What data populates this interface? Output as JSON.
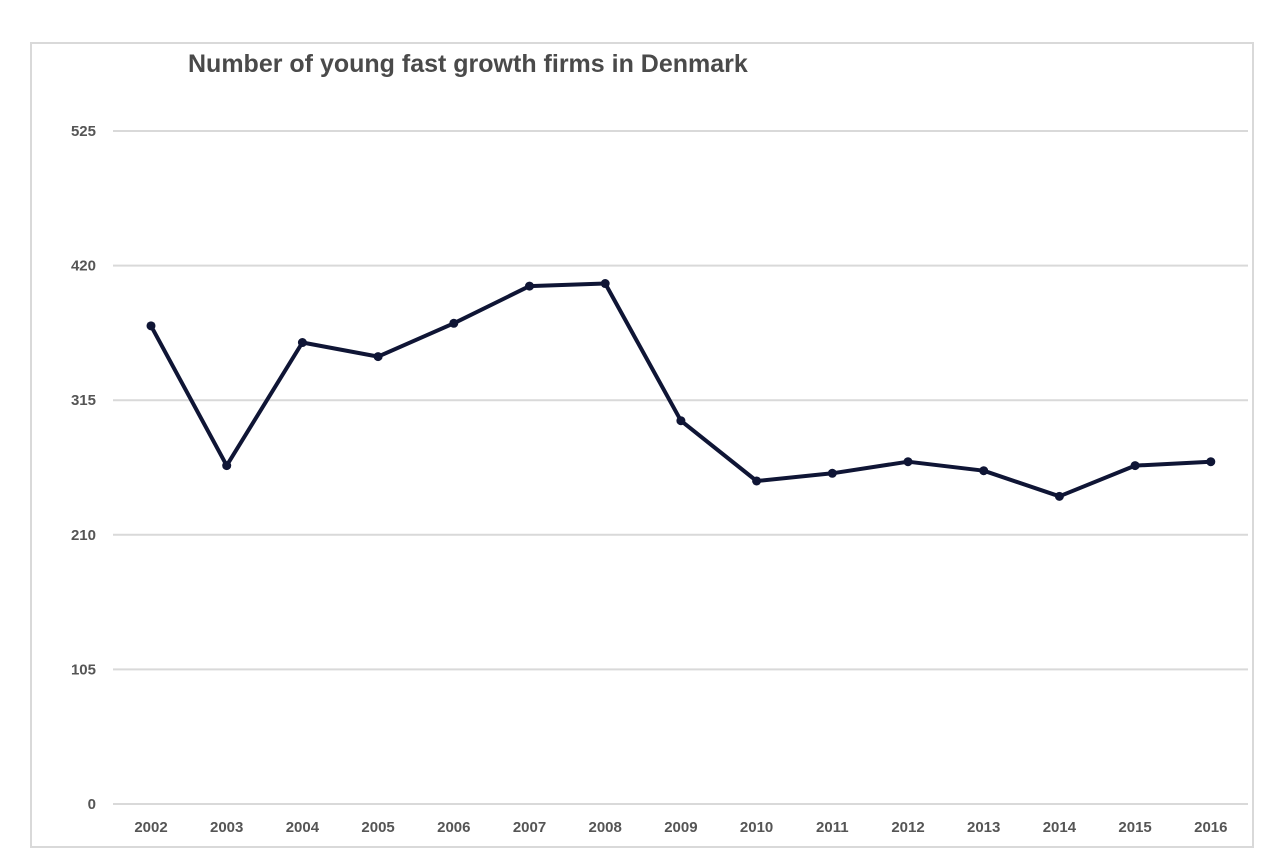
{
  "chart_data": {
    "type": "line",
    "title": "Number of young fast growth firms in Denmark",
    "xlabel": "",
    "ylabel": "",
    "categories": [
      "2002",
      "2003",
      "2004",
      "2005",
      "2006",
      "2007",
      "2008",
      "2009",
      "2010",
      "2011",
      "2012",
      "2013",
      "2014",
      "2015",
      "2016"
    ],
    "series": [
      {
        "values": [
          373,
          264,
          360,
          349,
          375,
          404,
          406,
          299,
          252,
          258,
          267,
          260,
          240,
          264,
          267
        ]
      }
    ],
    "ylim": [
      0,
      525
    ],
    "yticks": [
      "0",
      "105",
      "210",
      "315",
      "420",
      "525"
    ],
    "grid": "horizontal",
    "legend": "none",
    "colors": {
      "line": "#0f1535",
      "grid": "#d9d9d9",
      "frame": "#d9d9d9",
      "title": "#4a4a4a",
      "ticks": "#555555"
    }
  }
}
